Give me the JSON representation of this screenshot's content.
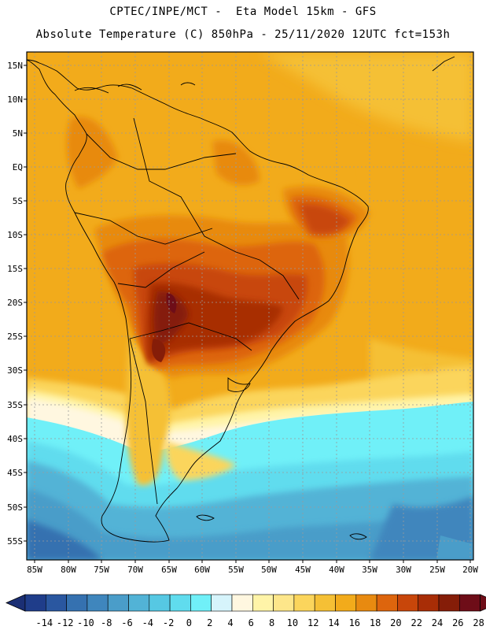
{
  "header": {
    "line1": "CPTEC/INPE/MCT -  Eta Model 15km - GFS",
    "line2": "Absolute Temperature (C) 850hPa - 25/11/2020 12UTC fct=153h"
  },
  "map": {
    "lat_labels": [
      "15N",
      "10N",
      "5N",
      "EQ",
      "5S",
      "10S",
      "15S",
      "20S",
      "25S",
      "30S",
      "35S",
      "40S",
      "45S",
      "50S",
      "55S"
    ],
    "lon_labels": [
      "85W",
      "80W",
      "75W",
      "70W",
      "65W",
      "60W",
      "55W",
      "50W",
      "45W",
      "40W",
      "35W",
      "30W",
      "25W",
      "20W"
    ]
  },
  "colorbar": {
    "labels": [
      "-14",
      "-12",
      "-10",
      "-8",
      "-6",
      "-4",
      "-2",
      "0",
      "2",
      "4",
      "6",
      "8",
      "10",
      "12",
      "14",
      "16",
      "18",
      "20",
      "22",
      "24",
      "26",
      "28"
    ],
    "colors": [
      "#1f3d8a",
      "#2a57a0",
      "#3571b0",
      "#3f86bd",
      "#4a9dc9",
      "#52b3d6",
      "#56c8e3",
      "#60dcee",
      "#70f0f8",
      "#d6f4fb",
      "#fff7e0",
      "#fff4a8",
      "#fde68a",
      "#fbd55c",
      "#f5c035",
      "#f2ab1b",
      "#e88a10",
      "#dd650d",
      "#c8460a",
      "#a82d06",
      "#851d08",
      "#6e0d18"
    ]
  },
  "colors": {
    "ocean_warm": "#f2ab1b",
    "land_hot": "#a82d06",
    "cold_south": "#3f86bd",
    "border": "#000000"
  }
}
